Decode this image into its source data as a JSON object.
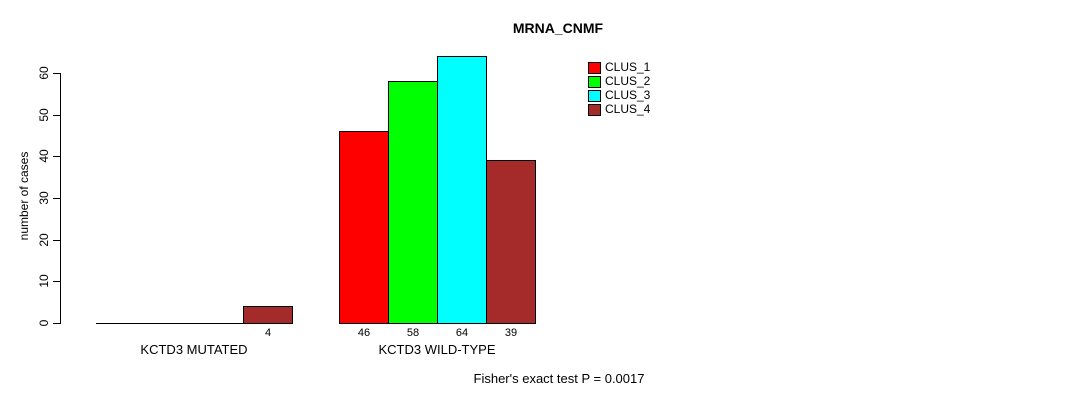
{
  "chart_data": {
    "type": "bar",
    "title": "MRNA_CNMF",
    "ylabel": "number of cases",
    "xlabel": "",
    "categories": [
      "KCTD3 MUTATED",
      "KCTD3 WILD-TYPE"
    ],
    "series": [
      {
        "name": "CLUS_1",
        "color": "#ff0000",
        "values": [
          0,
          46
        ]
      },
      {
        "name": "CLUS_2",
        "color": "#00ff00",
        "values": [
          0,
          58
        ]
      },
      {
        "name": "CLUS_3",
        "color": "#00ffff",
        "values": [
          0,
          64
        ]
      },
      {
        "name": "CLUS_4",
        "color": "#a52a2a",
        "values": [
          4,
          39
        ]
      }
    ],
    "bar_labels": [
      [
        "",
        "",
        "",
        "4"
      ],
      [
        "46",
        "58",
        "64",
        "39"
      ]
    ],
    "y_ticks": [
      0,
      10,
      20,
      30,
      40,
      50,
      60
    ],
    "ylim": [
      0,
      64
    ],
    "grid": false,
    "legend_position": "top-right",
    "legend_entries": [
      "CLUS_1",
      "CLUS_2",
      "CLUS_3",
      "CLUS_4"
    ],
    "annotation": "Fisher's exact test P = 0.0017"
  }
}
